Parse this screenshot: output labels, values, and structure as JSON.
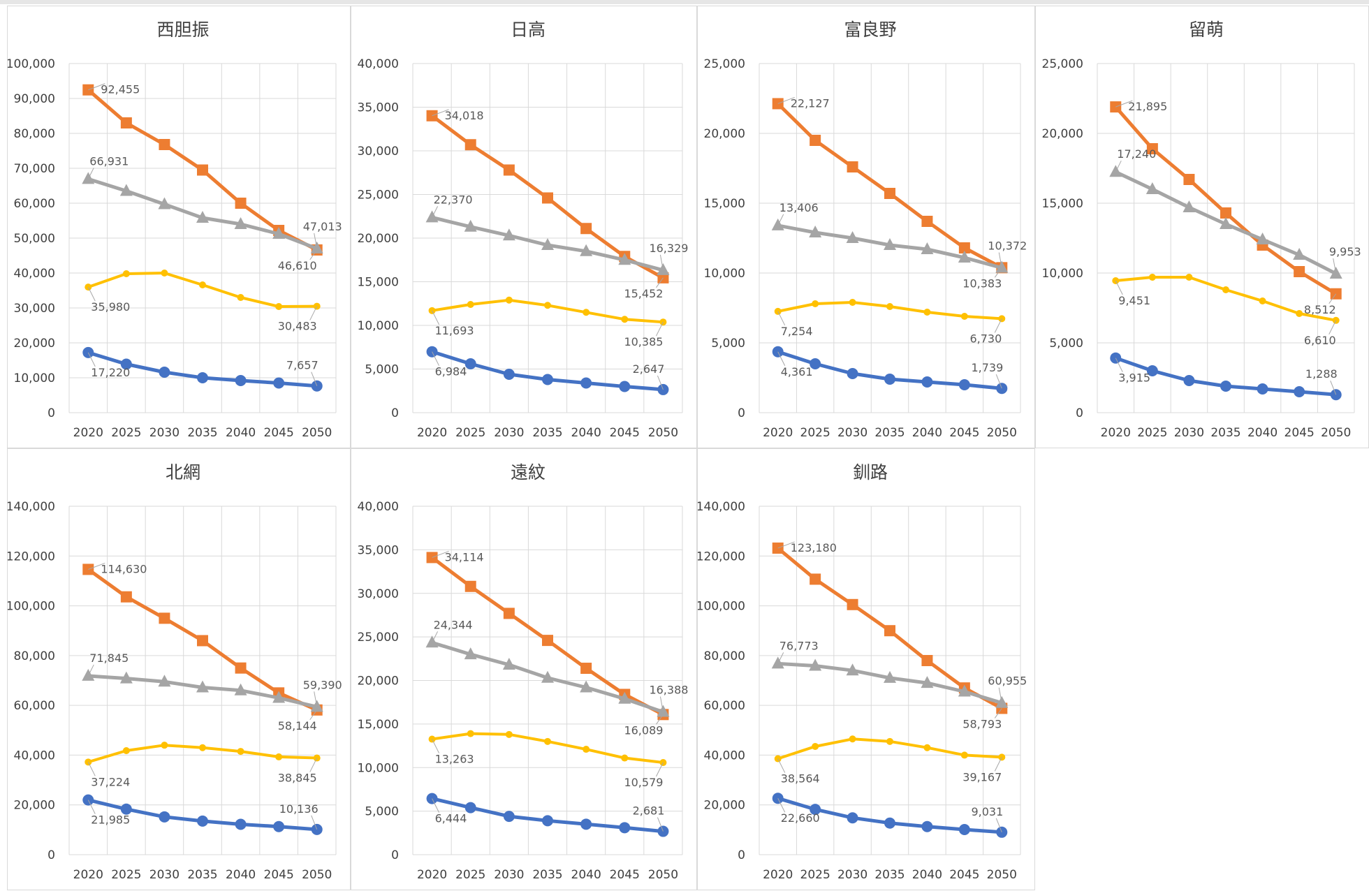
{
  "colors": {
    "orange": "#ed7d31",
    "gray": "#a5a5a5",
    "yellow": "#ffc000",
    "blue": "#4472c4",
    "grid": "#d9d9d9",
    "text": "#404040"
  },
  "chart_data": [
    {
      "type": "line",
      "title": "西胆振",
      "categories": [
        "2020",
        "2025",
        "2030",
        "2035",
        "2040",
        "2045",
        "2050"
      ],
      "ylim": [
        0,
        100000
      ],
      "yticks": [
        "0",
        "10,000",
        "20,000",
        "30,000",
        "40,000",
        "50,000",
        "60,000",
        "70,000",
        "80,000",
        "90,000",
        "100,000"
      ],
      "grid": true,
      "series": [
        {
          "color": "orange",
          "marker": "square",
          "values": [
            92455,
            83000,
            76800,
            69500,
            60000,
            52200,
            46610
          ],
          "labels": {
            "first": "92,455",
            "last": "46,610"
          }
        },
        {
          "color": "gray",
          "marker": "triangle",
          "values": [
            66931,
            63500,
            59700,
            55800,
            54000,
            51200,
            47013
          ],
          "labels": {
            "first": "66,931",
            "last": "47,013"
          }
        },
        {
          "color": "yellow",
          "marker": "dot",
          "values": [
            35980,
            39800,
            40000,
            36600,
            33000,
            30400,
            30483
          ],
          "labels": {
            "first": "35,980",
            "last": "30,483"
          }
        },
        {
          "color": "blue",
          "marker": "circle",
          "values": [
            17220,
            13900,
            11600,
            10000,
            9200,
            8500,
            7657
          ],
          "labels": {
            "first": "17,220",
            "last": "7,657"
          }
        }
      ]
    },
    {
      "type": "line",
      "title": "日高",
      "categories": [
        "2020",
        "2025",
        "2030",
        "2035",
        "2040",
        "2045",
        "2050"
      ],
      "ylim": [
        0,
        40000
      ],
      "yticks": [
        "0",
        "5,000",
        "10,000",
        "15,000",
        "20,000",
        "25,000",
        "30,000",
        "35,000",
        "40,000"
      ],
      "grid": true,
      "series": [
        {
          "color": "orange",
          "marker": "square",
          "values": [
            34018,
            30700,
            27800,
            24600,
            21100,
            17900,
            15452
          ],
          "labels": {
            "first": "34,018",
            "last": "15,452"
          }
        },
        {
          "color": "gray",
          "marker": "triangle",
          "values": [
            22370,
            21300,
            20300,
            19200,
            18500,
            17500,
            16329
          ],
          "labels": {
            "first": "22,370",
            "last": "16,329"
          }
        },
        {
          "color": "yellow",
          "marker": "dot",
          "values": [
            11693,
            12400,
            12900,
            12300,
            11500,
            10700,
            10385
          ],
          "labels": {
            "first": "11,693",
            "last": "10,385"
          }
        },
        {
          "color": "blue",
          "marker": "circle",
          "values": [
            6984,
            5600,
            4400,
            3800,
            3400,
            3000,
            2647
          ],
          "labels": {
            "first": "6,984",
            "last": "2,647"
          }
        }
      ]
    },
    {
      "type": "line",
      "title": "富良野",
      "categories": [
        "2020",
        "2025",
        "2030",
        "2035",
        "2040",
        "2045",
        "2050"
      ],
      "ylim": [
        0,
        25000
      ],
      "yticks": [
        "0",
        "5,000",
        "10,000",
        "15,000",
        "20,000",
        "25,000"
      ],
      "grid": true,
      "series": [
        {
          "color": "orange",
          "marker": "square",
          "values": [
            22127,
            19500,
            17600,
            15700,
            13700,
            11800,
            10383
          ],
          "labels": {
            "first": "22,127",
            "last": "10,383"
          }
        },
        {
          "color": "gray",
          "marker": "triangle",
          "values": [
            13406,
            12900,
            12500,
            12000,
            11700,
            11100,
            10372
          ],
          "labels": {
            "first": "13,406",
            "last": "10,372"
          }
        },
        {
          "color": "yellow",
          "marker": "dot",
          "values": [
            7254,
            7800,
            7900,
            7600,
            7200,
            6900,
            6730
          ],
          "labels": {
            "first": "7,254",
            "last": "6,730"
          }
        },
        {
          "color": "blue",
          "marker": "circle",
          "values": [
            4361,
            3500,
            2800,
            2400,
            2200,
            2000,
            1739
          ],
          "labels": {
            "first": "4,361",
            "last": "1,739"
          }
        }
      ]
    },
    {
      "type": "line",
      "title": "留萌",
      "categories": [
        "2020",
        "2025",
        "2030",
        "2035",
        "2040",
        "2045",
        "2050"
      ],
      "ylim": [
        0,
        25000
      ],
      "yticks": [
        "0",
        "5,000",
        "10,000",
        "15,000",
        "20,000",
        "25,000"
      ],
      "grid": true,
      "series": [
        {
          "color": "orange",
          "marker": "square",
          "values": [
            21895,
            18900,
            16700,
            14300,
            12000,
            10100,
            8512
          ],
          "labels": {
            "first": "21,895",
            "last": "8,512"
          }
        },
        {
          "color": "gray",
          "marker": "triangle",
          "values": [
            17240,
            16000,
            14700,
            13500,
            12400,
            11300,
            9953
          ],
          "labels": {
            "first": "17,240",
            "last": "9,953"
          }
        },
        {
          "color": "yellow",
          "marker": "dot",
          "values": [
            9451,
            9700,
            9700,
            8800,
            8000,
            7100,
            6610
          ],
          "labels": {
            "first": "9,451",
            "last": "6,610"
          }
        },
        {
          "color": "blue",
          "marker": "circle",
          "values": [
            3915,
            3000,
            2300,
            1900,
            1700,
            1500,
            1288
          ],
          "labels": {
            "first": "3,915",
            "last": "1,288"
          }
        }
      ]
    },
    {
      "type": "line",
      "title": "北網",
      "categories": [
        "2020",
        "2025",
        "2030",
        "2035",
        "2040",
        "2045",
        "2050"
      ],
      "ylim": [
        0,
        140000
      ],
      "yticks": [
        "0",
        "20,000",
        "40,000",
        "60,000",
        "80,000",
        "100,000",
        "120,000",
        "140,000"
      ],
      "grid": true,
      "series": [
        {
          "color": "orange",
          "marker": "square",
          "values": [
            114630,
            103600,
            95000,
            86000,
            75000,
            65000,
            58144
          ],
          "labels": {
            "first": "114,630",
            "last": "58,144"
          }
        },
        {
          "color": "gray",
          "marker": "triangle",
          "values": [
            71845,
            70800,
            69500,
            67200,
            66000,
            63000,
            59390
          ],
          "labels": {
            "first": "71,845",
            "last": "59,390"
          }
        },
        {
          "color": "yellow",
          "marker": "dot",
          "values": [
            37224,
            41800,
            44000,
            43000,
            41500,
            39300,
            38845
          ],
          "labels": {
            "first": "37,224",
            "last": "38,845"
          }
        },
        {
          "color": "blue",
          "marker": "circle",
          "values": [
            21985,
            18300,
            15200,
            13500,
            12200,
            11300,
            10136
          ],
          "labels": {
            "first": "21,985",
            "last": "10,136"
          }
        }
      ]
    },
    {
      "type": "line",
      "title": "遠紋",
      "categories": [
        "2020",
        "2025",
        "2030",
        "2035",
        "2040",
        "2045",
        "2050"
      ],
      "ylim": [
        0,
        40000
      ],
      "yticks": [
        "0",
        "5,000",
        "10,000",
        "15,000",
        "20,000",
        "25,000",
        "30,000",
        "35,000",
        "40,000"
      ],
      "grid": true,
      "series": [
        {
          "color": "orange",
          "marker": "square",
          "values": [
            34114,
            30800,
            27700,
            24600,
            21400,
            18400,
            16089
          ],
          "labels": {
            "first": "34,114",
            "last": "16,089"
          }
        },
        {
          "color": "gray",
          "marker": "triangle",
          "values": [
            24344,
            23000,
            21800,
            20300,
            19200,
            17900,
            16388
          ],
          "labels": {
            "first": "24,344",
            "last": "16,388"
          }
        },
        {
          "color": "yellow",
          "marker": "dot",
          "values": [
            13263,
            13900,
            13800,
            13000,
            12100,
            11100,
            10579
          ],
          "labels": {
            "first": "13,263",
            "last": "10,579"
          }
        },
        {
          "color": "blue",
          "marker": "circle",
          "values": [
            6444,
            5400,
            4400,
            3900,
            3500,
            3100,
            2681
          ],
          "labels": {
            "first": "6,444",
            "last": "2,681"
          }
        }
      ]
    },
    {
      "type": "line",
      "title": "釧路",
      "categories": [
        "2020",
        "2025",
        "2030",
        "2035",
        "2040",
        "2045",
        "2050"
      ],
      "ylim": [
        0,
        140000
      ],
      "yticks": [
        "0",
        "20,000",
        "40,000",
        "60,000",
        "80,000",
        "100,000",
        "120,000",
        "140,000"
      ],
      "grid": true,
      "series": [
        {
          "color": "orange",
          "marker": "square",
          "values": [
            123180,
            110700,
            100500,
            90000,
            78000,
            67000,
            58793
          ],
          "labels": {
            "first": "123,180",
            "last": "58,793"
          }
        },
        {
          "color": "gray",
          "marker": "triangle",
          "values": [
            76773,
            75900,
            74000,
            71000,
            69000,
            65500,
            60955
          ],
          "labels": {
            "first": "76,773",
            "last": "60,955"
          }
        },
        {
          "color": "yellow",
          "marker": "dot",
          "values": [
            38564,
            43500,
            46500,
            45500,
            43000,
            40000,
            39167
          ],
          "labels": {
            "first": "38,564",
            "last": "39,167"
          }
        },
        {
          "color": "blue",
          "marker": "circle",
          "values": [
            22660,
            18200,
            14800,
            12700,
            11300,
            10100,
            9031
          ],
          "labels": {
            "first": "22,660",
            "last": "9,031"
          }
        }
      ]
    }
  ]
}
